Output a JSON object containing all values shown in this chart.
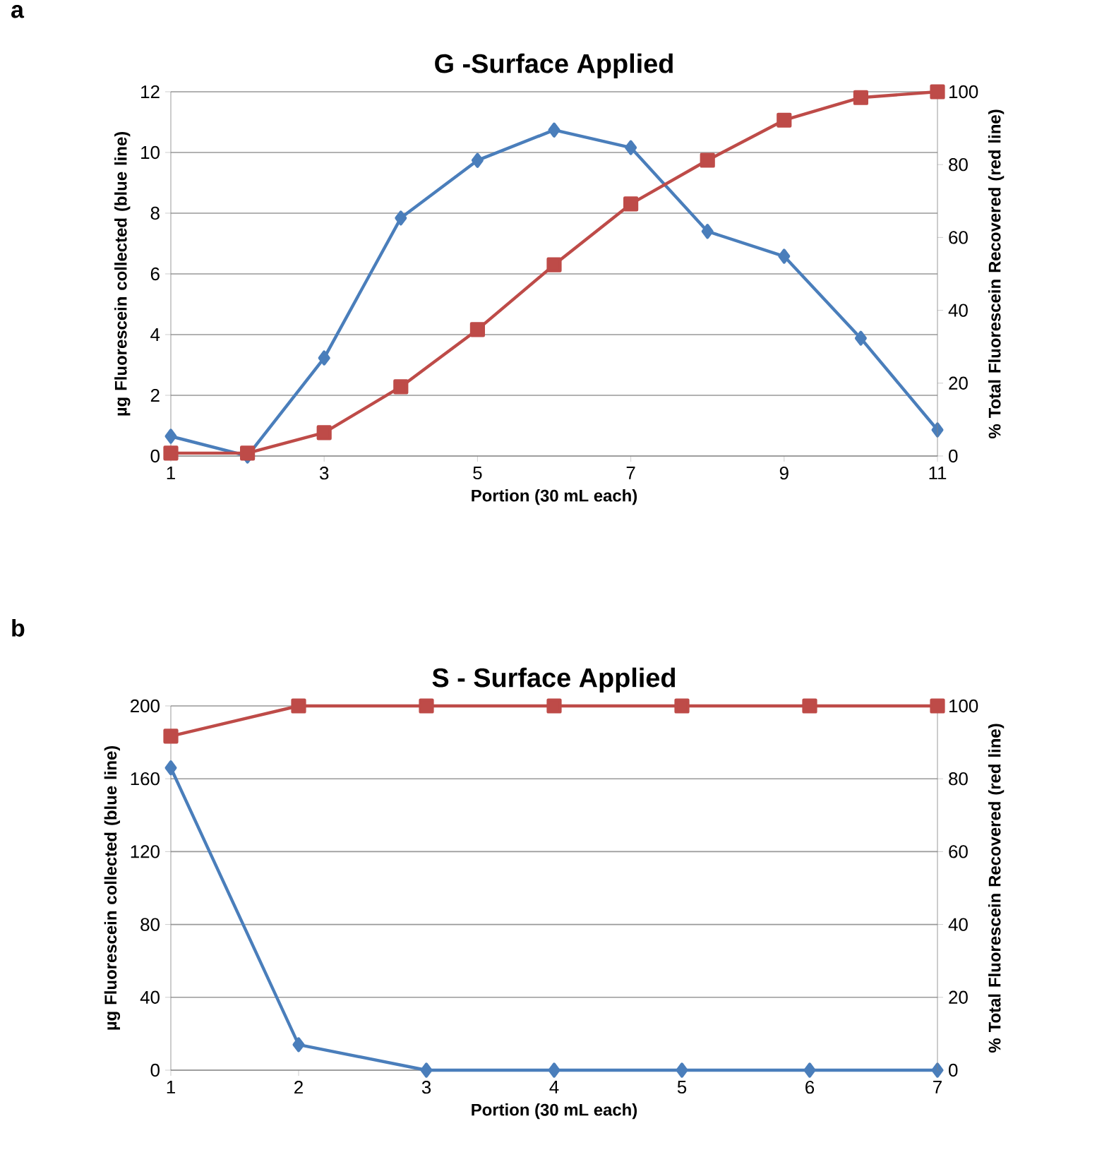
{
  "chart_data": [
    {
      "type": "line",
      "title": "G -Surface Applied",
      "xlabel": "Portion (30 mL each)",
      "ylabel": "µg Fluorescein collected (blue line)",
      "y2label": "% Total Fluorescein Recovered (red line)",
      "annotations": [
        "a"
      ],
      "x": [
        1,
        2,
        3,
        4,
        5,
        6,
        7,
        8,
        9,
        10,
        11
      ],
      "series": [
        {
          "color": "#4a7ebb",
          "marker": "diamond",
          "values": [
            0.65,
            0,
            3.23,
            7.84,
            9.74,
            10.74,
            10.16,
            7.4,
            6.58,
            3.88,
            0.86
          ]
        },
        {
          "color": "#be4b48",
          "marker": "square",
          "axis": "y2",
          "values": [
            0.8,
            0.8,
            6.4,
            19,
            34.7,
            52.5,
            69.2,
            81.2,
            92.2,
            98.4,
            100
          ]
        }
      ],
      "xlim": [
        1,
        11
      ],
      "xticks": [
        1,
        3,
        5,
        7,
        9,
        11
      ],
      "ylim": [
        0,
        12
      ],
      "yticks": [
        0,
        2,
        4,
        6,
        8,
        10,
        12
      ],
      "y2lim": [
        0,
        100
      ],
      "y2ticks": [
        0,
        20,
        40,
        60,
        80,
        100
      ],
      "grid": "y",
      "line_style": "solid"
    },
    {
      "type": "line",
      "title": "S - Surface Applied",
      "xlabel": "Portion (30 mL each)",
      "ylabel": "µg Fluorescein collected (blue line)",
      "y2label": "% Total Fluorescein Recovered (red line)",
      "annotations": [
        "b"
      ],
      "x": [
        1,
        2,
        3,
        4,
        5,
        6,
        7
      ],
      "series": [
        {
          "color": "#4a7ebb",
          "marker": "diamond",
          "values": [
            166,
            14,
            0,
            0,
            0,
            0,
            0
          ]
        },
        {
          "color": "#be4b48",
          "marker": "square",
          "axis": "y2",
          "values": [
            91.7,
            100,
            100,
            100,
            100,
            100,
            100
          ]
        }
      ],
      "xlim": [
        1,
        7
      ],
      "xticks": [
        1,
        2,
        3,
        4,
        5,
        6,
        7
      ],
      "ylim": [
        0,
        200
      ],
      "yticks": [
        0,
        40,
        80,
        120,
        160,
        200
      ],
      "y2lim": [
        0,
        100
      ],
      "y2ticks": [
        0,
        20,
        40,
        60,
        80,
        100
      ],
      "grid": "y",
      "line_style": "solid"
    }
  ]
}
